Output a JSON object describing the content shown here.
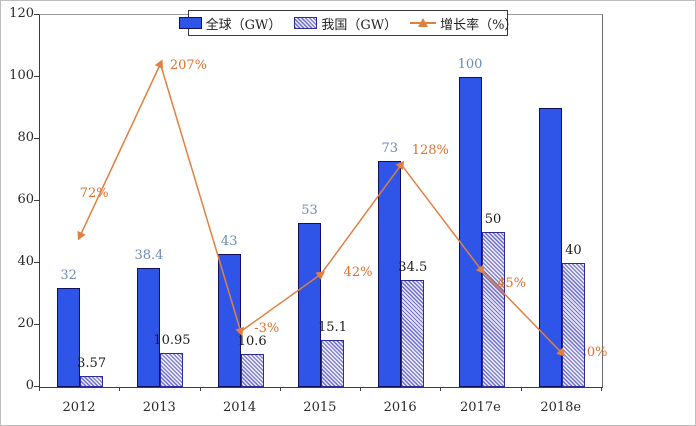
{
  "chart_data": {
    "type": "bar",
    "subtype": "bar+line combo",
    "title": "",
    "categories": [
      "2012",
      "2013",
      "2014",
      "2015",
      "2016",
      "2017e",
      "2018e"
    ],
    "series": [
      {
        "name": "全球（GW）",
        "type": "bar",
        "color": "#2f55e8",
        "values": [
          32,
          38.4,
          43,
          53,
          73,
          100,
          90
        ],
        "data_labels": [
          "32",
          "38.4",
          "43",
          "53",
          "73",
          "100",
          ""
        ]
      },
      {
        "name": "我国（GW）",
        "type": "bar",
        "hatch": true,
        "color": "#7070d2",
        "values": [
          3.57,
          10.95,
          10.6,
          15.1,
          34.5,
          50,
          40
        ],
        "data_labels": [
          "3.57",
          "10.95",
          "10.6",
          "15.1",
          "34.5",
          "50",
          "40"
        ]
      },
      {
        "name": "增长率（%）",
        "type": "line",
        "color": "#e08040",
        "values": [
          72,
          207,
          -3,
          42,
          128,
          45,
          -20
        ],
        "data_labels": [
          "72%",
          "207%",
          "-3%",
          "42%",
          "128%",
          "45%",
          "-20%"
        ],
        "label_offsets": [
          [
            12,
            -41
          ],
          [
            26,
            3
          ],
          [
            24,
            -1
          ],
          [
            35,
            0
          ],
          [
            27,
            -13
          ],
          [
            28,
            15
          ],
          [
            27,
            1
          ]
        ],
        "label_behind_bars": [
          false,
          false,
          false,
          false,
          false,
          false,
          true
        ]
      }
    ],
    "y_axis": {
      "min": 0,
      "max": 120,
      "tick_step": 20,
      "tick_labels": [
        "0",
        "20",
        "40",
        "60",
        "80",
        "100",
        "120"
      ]
    },
    "y2_hidden_axis": {
      "min": -46.6,
      "max": 245.4
    },
    "legend_position": "top-center",
    "grid": false,
    "colors": {
      "bar_blue": "#2f55e8",
      "bar_blue_border": "#101060",
      "hatch_stripe": "#7070d2",
      "hatch_bg": "#e8e8fa",
      "hatch_border": "#2c2c96",
      "line_orange": "#e08040",
      "value_label_blue": "#6b8cba",
      "value_label_dark": "#1c1c1c",
      "growth_label_orange": "#e07030",
      "axis_text": "#2a2a2a"
    }
  }
}
